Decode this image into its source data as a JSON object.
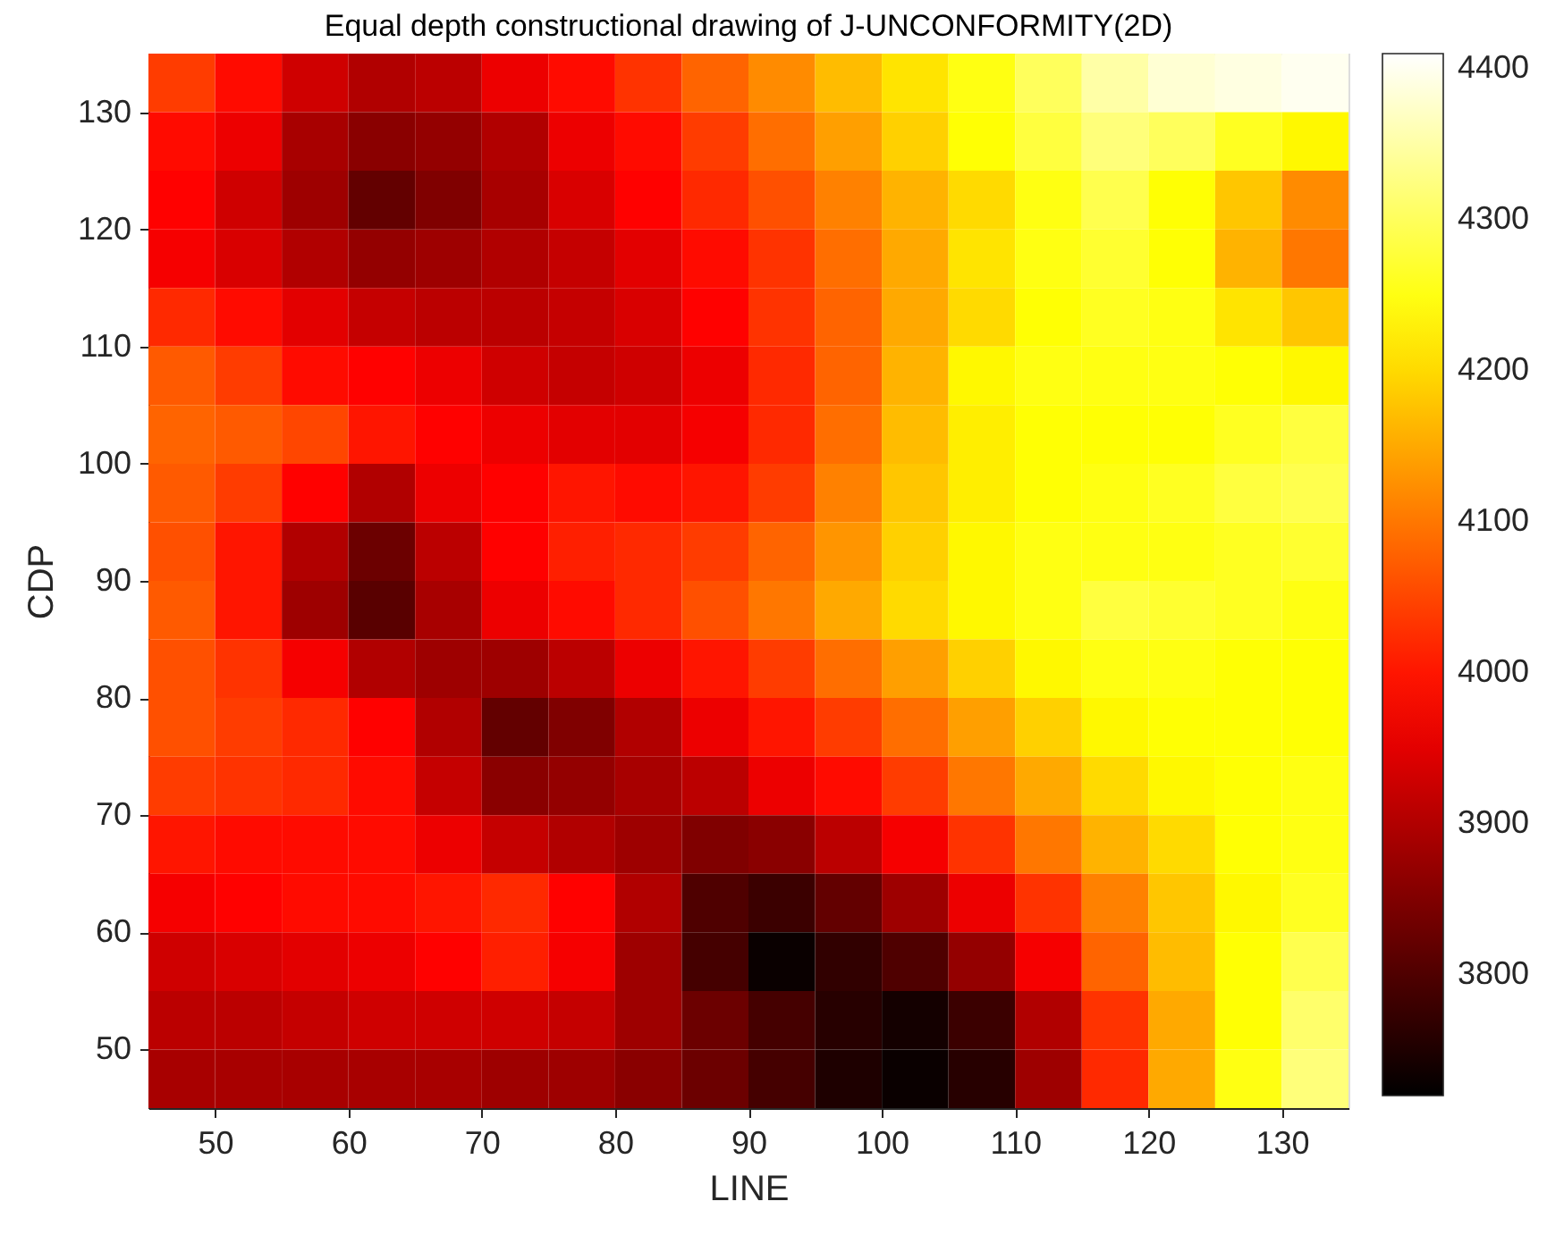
{
  "chart_data": {
    "type": "heatmap",
    "title": "Equal depth constructional drawing of J-UNCONFORMITY(2D)",
    "xlabel": "LINE",
    "ylabel": "CDP",
    "x": [
      47.5,
      52.5,
      57.5,
      62.5,
      67.5,
      72.5,
      77.5,
      82.5,
      87.5,
      92.5,
      97.5,
      102.5,
      107.5,
      112.5,
      117.5,
      122.5,
      127.5,
      132.5
    ],
    "y": [
      132.5,
      127.5,
      122.5,
      117.5,
      112.5,
      107.5,
      102.5,
      97.5,
      92.5,
      87.5,
      82.5,
      77.5,
      72.5,
      67.5,
      62.5,
      57.5,
      52.5,
      47.5
    ],
    "xlim": [
      45,
      135
    ],
    "ylim": [
      45,
      135
    ],
    "xticks": [
      50,
      60,
      70,
      80,
      90,
      100,
      110,
      120,
      130
    ],
    "yticks": [
      50,
      60,
      70,
      80,
      90,
      100,
      110,
      120,
      130
    ],
    "clim": [
      3720,
      4410
    ],
    "cticks": [
      3800,
      3900,
      4000,
      4100,
      4200,
      4300,
      4400
    ],
    "cells": [
      [
        4040,
        3990,
        3930,
        3900,
        3910,
        3960,
        3990,
        4030,
        4080,
        4120,
        4170,
        4210,
        4250,
        4300,
        4350,
        4380,
        4390,
        4400
      ],
      [
        3990,
        3960,
        3890,
        3860,
        3870,
        3900,
        3960,
        3990,
        4040,
        4090,
        4140,
        4190,
        4240,
        4280,
        4320,
        4300,
        4260,
        4230
      ],
      [
        3980,
        3930,
        3880,
        3820,
        3850,
        3890,
        3940,
        3980,
        4020,
        4060,
        4110,
        4160,
        4200,
        4250,
        4290,
        4240,
        4180,
        4120
      ],
      [
        3970,
        3940,
        3900,
        3870,
        3880,
        3900,
        3920,
        3950,
        3990,
        4030,
        4090,
        4150,
        4210,
        4250,
        4270,
        4240,
        4160,
        4100
      ],
      [
        4020,
        3990,
        3950,
        3920,
        3910,
        3910,
        3920,
        3940,
        3980,
        4030,
        4080,
        4150,
        4200,
        4240,
        4260,
        4250,
        4210,
        4180
      ],
      [
        4070,
        4040,
        3990,
        3980,
        3960,
        3930,
        3920,
        3930,
        3960,
        4020,
        4080,
        4160,
        4230,
        4250,
        4250,
        4250,
        4240,
        4230
      ],
      [
        4080,
        4070,
        4050,
        4000,
        3980,
        3960,
        3950,
        3950,
        3970,
        4020,
        4090,
        4170,
        4220,
        4240,
        4240,
        4240,
        4260,
        4280
      ],
      [
        4070,
        4040,
        3980,
        3900,
        3960,
        3980,
        4000,
        3990,
        4000,
        4040,
        4110,
        4180,
        4220,
        4240,
        4250,
        4260,
        4280,
        4290
      ],
      [
        4060,
        4000,
        3900,
        3830,
        3910,
        3980,
        4010,
        4020,
        4040,
        4080,
        4130,
        4190,
        4230,
        4250,
        4250,
        4250,
        4260,
        4270
      ],
      [
        4070,
        4000,
        3880,
        3810,
        3890,
        3960,
        3990,
        4020,
        4060,
        4100,
        4150,
        4200,
        4230,
        4250,
        4280,
        4270,
        4260,
        4250
      ],
      [
        4060,
        4030,
        3970,
        3900,
        3880,
        3880,
        3910,
        3960,
        4000,
        4040,
        4090,
        4140,
        4190,
        4230,
        4250,
        4250,
        4240,
        4240
      ],
      [
        4060,
        4040,
        4020,
        3980,
        3900,
        3820,
        3850,
        3900,
        3960,
        4000,
        4040,
        4090,
        4140,
        4190,
        4230,
        4240,
        4240,
        4240
      ],
      [
        4040,
        4030,
        4020,
        3990,
        3920,
        3860,
        3870,
        3890,
        3910,
        3960,
        3990,
        4040,
        4100,
        4150,
        4200,
        4230,
        4240,
        4250
      ],
      [
        4000,
        3990,
        3990,
        3990,
        3960,
        3920,
        3900,
        3880,
        3850,
        3860,
        3910,
        3970,
        4030,
        4100,
        4160,
        4200,
        4240,
        4250
      ],
      [
        3970,
        3980,
        3990,
        3990,
        4000,
        4020,
        3980,
        3900,
        3800,
        3780,
        3820,
        3880,
        3960,
        4030,
        4110,
        4180,
        4230,
        4260
      ],
      [
        3930,
        3940,
        3950,
        3960,
        3980,
        4010,
        3970,
        3880,
        3790,
        3730,
        3770,
        3800,
        3870,
        3970,
        4080,
        4170,
        4240,
        4290
      ],
      [
        3910,
        3910,
        3920,
        3930,
        3930,
        3930,
        3920,
        3880,
        3830,
        3790,
        3760,
        3740,
        3780,
        3900,
        4030,
        4150,
        4240,
        4310
      ],
      [
        3890,
        3890,
        3890,
        3890,
        3890,
        3880,
        3880,
        3860,
        3830,
        3790,
        3750,
        3730,
        3760,
        3880,
        4020,
        4150,
        4250,
        4320
      ]
    ]
  }
}
